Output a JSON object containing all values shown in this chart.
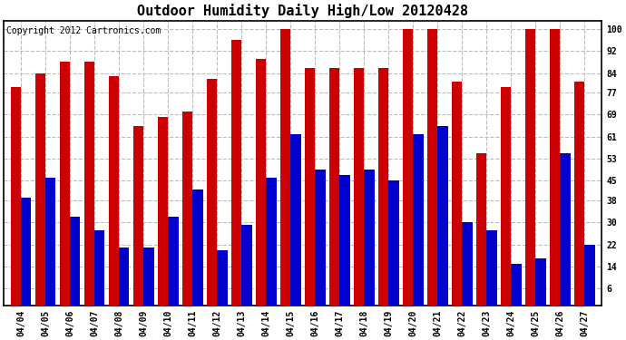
{
  "title": "Outdoor Humidity Daily High/Low 20120428",
  "copyright": "Copyright 2012 Cartronics.com",
  "dates": [
    "04/04",
    "04/05",
    "04/06",
    "04/07",
    "04/08",
    "04/09",
    "04/10",
    "04/11",
    "04/12",
    "04/13",
    "04/14",
    "04/15",
    "04/16",
    "04/17",
    "04/18",
    "04/19",
    "04/20",
    "04/21",
    "04/22",
    "04/23",
    "04/24",
    "04/25",
    "04/26",
    "04/27"
  ],
  "highs": [
    79,
    84,
    88,
    88,
    83,
    65,
    68,
    70,
    82,
    96,
    89,
    100,
    86,
    86,
    86,
    86,
    100,
    100,
    81,
    55,
    79,
    100,
    100,
    81
  ],
  "lows": [
    39,
    46,
    32,
    27,
    21,
    21,
    32,
    42,
    20,
    29,
    46,
    62,
    49,
    47,
    49,
    45,
    62,
    65,
    30,
    27,
    15,
    17,
    55,
    22
  ],
  "bar_color_high": "#cc0000",
  "bar_color_low": "#0000cc",
  "background_color": "#ffffff",
  "plot_bg_color": "#ffffff",
  "grid_color": "#bbbbbb",
  "yticks": [
    6,
    14,
    22,
    30,
    38,
    45,
    53,
    61,
    69,
    77,
    84,
    92,
    100
  ],
  "ylim": [
    0,
    103
  ],
  "bar_width": 0.42,
  "title_fontsize": 11,
  "tick_fontsize": 7,
  "copyright_fontsize": 7
}
